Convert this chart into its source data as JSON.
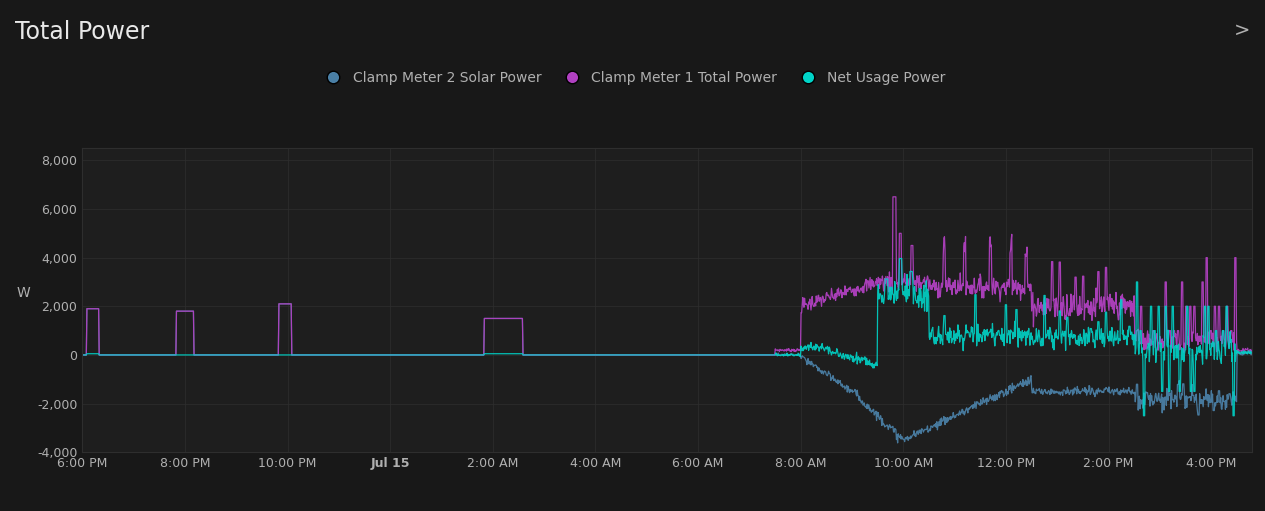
{
  "title": "Total Power",
  "background_color": "#181818",
  "plot_bg_color": "#1e1e1e",
  "grid_color": "#2e2e2e",
  "text_color": "#b0b0b0",
  "title_color": "#e8e8e8",
  "ylabel": "W",
  "ylim": [
    -4000,
    8500
  ],
  "yticks": [
    -4000,
    -2000,
    0,
    2000,
    4000,
    6000,
    8000
  ],
  "series": {
    "solar": {
      "label": "Clamp Meter 2 Solar Power",
      "color": "#4a7fa5"
    },
    "total": {
      "label": "Clamp Meter 1 Total Power",
      "color": "#b040c0"
    },
    "net": {
      "label": "Net Usage Power",
      "color": "#00d4c8"
    }
  },
  "xtick_labels": [
    "6:00 PM",
    "8:00 PM",
    "10:00 PM",
    "Jul 15",
    "2:00 AM",
    "4:00 AM",
    "6:00 AM",
    "8:00 AM",
    "10:00 AM",
    "12:00 PM",
    "2:00 PM",
    "4:00 PM"
  ],
  "xtick_hours": [
    0,
    2,
    4,
    6,
    8,
    10,
    12,
    14,
    16,
    18,
    20,
    22
  ],
  "xlim": [
    0,
    22.8
  ]
}
